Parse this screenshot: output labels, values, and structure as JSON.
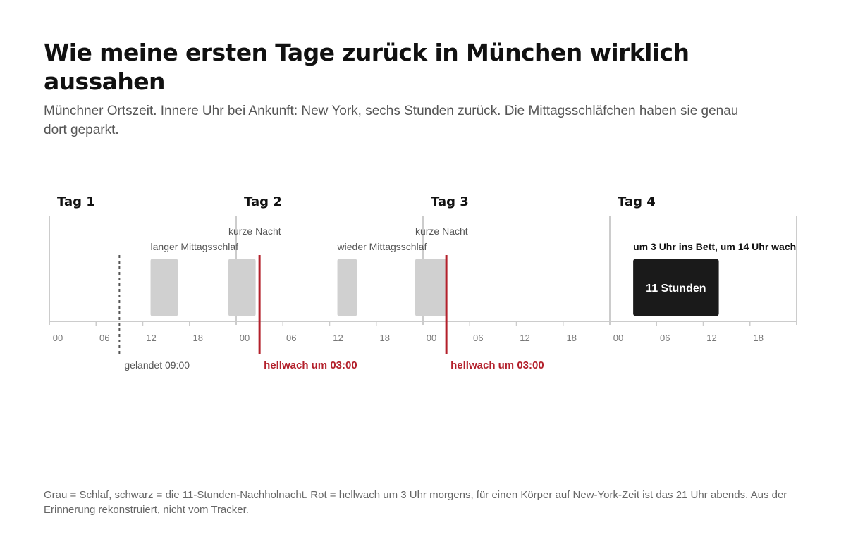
{
  "title": "Wie meine ersten Tage zurück in München wirklich aussahen",
  "subtitle": "Münchner Ortszeit. Innere Uhr bei Ankunft: New York, sechs Stunden zurück. Die Mittagsschläfchen haben sie genau dort geparkt.",
  "footnote": "Grau = Schlaf, schwarz = die 11-Stunden-Nachholnacht. Rot = hellwach um 3 Uhr morgens, für einen Körper auf New-York-Zeit ist das 21 Uhr abends. Aus der Erinnerung rekonstruiert, nicht vom Tracker.",
  "chart_data": {
    "type": "timeline",
    "x_unit": "Stunde (Münchner Ortszeit)",
    "days": [
      "Tag 1",
      "Tag 2",
      "Tag 3",
      "Tag 4"
    ],
    "tick_labels": [
      "00",
      "06",
      "12",
      "18"
    ],
    "hours_per_day": 24,
    "sleep_blocks": [
      {
        "day": 1,
        "start": 13.0,
        "end": 16.5,
        "kind": "sleep",
        "annotation": "langer Mittagsschlaf"
      },
      {
        "day": 1,
        "start": 23.0,
        "end": 26.5,
        "kind": "sleep",
        "annotation": "kurze Nacht"
      },
      {
        "day": 2,
        "start": 13.0,
        "end": 15.5,
        "kind": "sleep",
        "annotation": "wieder Mittagsschlaf"
      },
      {
        "day": 2,
        "start": 23.0,
        "end": 27.0,
        "kind": "sleep",
        "annotation": "kurze Nacht"
      },
      {
        "day": 4,
        "start": 3.0,
        "end": 14.0,
        "kind": "long",
        "label": "11 Stunden",
        "annotation": "um 3 Uhr ins Bett, um 14 Uhr wach"
      }
    ],
    "events": [
      {
        "day": 1,
        "hour": 9,
        "style": "dashed",
        "label": "gelandet 09:00"
      },
      {
        "day": 2,
        "hour": 3,
        "style": "red",
        "label": "hellwach um 03:00"
      },
      {
        "day": 3,
        "hour": 3,
        "style": "red",
        "label": "hellwach um 03:00"
      }
    ],
    "colors": {
      "sleep": "#d0d0d0",
      "long_sleep": "#1a1a1a",
      "awake_marker": "#b3202b",
      "axis": "#cccccc",
      "landed_marker": "#555555"
    }
  }
}
